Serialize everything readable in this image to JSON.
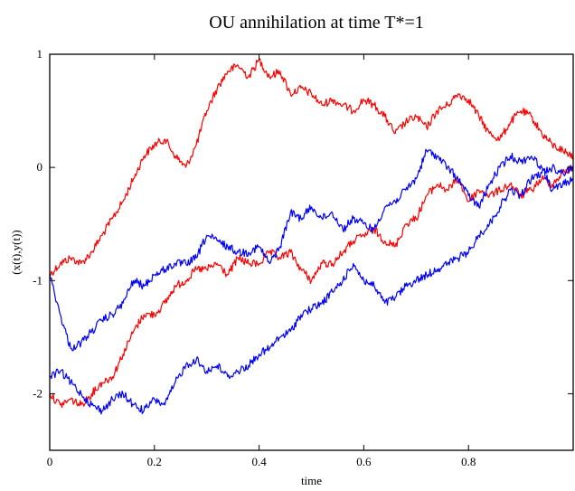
{
  "chart_data": {
    "type": "line",
    "title": "OU annihilation at time T*=1",
    "xlabel": "time",
    "ylabel": "(x(t),y(t))",
    "xlim": [
      0,
      1
    ],
    "ylim": [
      -2.5,
      1
    ],
    "x_ticks": [
      "0",
      "0.2",
      "0.4",
      "0.6",
      "0.8"
    ],
    "x_tick_values": [
      0,
      0.2,
      0.4,
      0.6,
      0.8
    ],
    "y_ticks": [
      "1",
      "0",
      "-1",
      "-2"
    ],
    "y_tick_values": [
      1,
      0,
      -1,
      -2
    ],
    "grid": false,
    "legend": "none",
    "series": [
      {
        "color": "#ff0000",
        "x": [
          0,
          0.02,
          0.04,
          0.06,
          0.08,
          0.1,
          0.12,
          0.14,
          0.16,
          0.18,
          0.2,
          0.22,
          0.24,
          0.26,
          0.28,
          0.3,
          0.32,
          0.34,
          0.36,
          0.38,
          0.4,
          0.42,
          0.44,
          0.46,
          0.48,
          0.5,
          0.52,
          0.54,
          0.56,
          0.58,
          0.6,
          0.62,
          0.64,
          0.66,
          0.68,
          0.7,
          0.72,
          0.74,
          0.76,
          0.78,
          0.8,
          0.82,
          0.84,
          0.86,
          0.88,
          0.9,
          0.92,
          0.94,
          0.96,
          0.98,
          1.0
        ],
        "y": [
          -0.95,
          -0.85,
          -0.8,
          -0.85,
          -0.75,
          -0.6,
          -0.45,
          -0.3,
          -0.1,
          0.1,
          0.2,
          0.25,
          0.1,
          0.0,
          0.2,
          0.5,
          0.7,
          0.85,
          0.9,
          0.8,
          0.95,
          0.8,
          0.85,
          0.65,
          0.7,
          0.65,
          0.55,
          0.6,
          0.55,
          0.5,
          0.6,
          0.55,
          0.45,
          0.3,
          0.4,
          0.45,
          0.35,
          0.5,
          0.55,
          0.65,
          0.6,
          0.45,
          0.3,
          0.25,
          0.4,
          0.5,
          0.45,
          0.3,
          0.2,
          0.15,
          0.1
        ]
      },
      {
        "color": "#ff0000",
        "x": [
          0,
          0.02,
          0.04,
          0.06,
          0.08,
          0.1,
          0.12,
          0.14,
          0.16,
          0.18,
          0.2,
          0.22,
          0.24,
          0.26,
          0.28,
          0.3,
          0.32,
          0.34,
          0.36,
          0.38,
          0.4,
          0.42,
          0.44,
          0.46,
          0.48,
          0.5,
          0.52,
          0.54,
          0.56,
          0.58,
          0.6,
          0.62,
          0.64,
          0.66,
          0.68,
          0.7,
          0.72,
          0.74,
          0.76,
          0.78,
          0.8,
          0.82,
          0.84,
          0.86,
          0.88,
          0.9,
          0.92,
          0.94,
          0.96,
          0.98,
          1.0
        ],
        "y": [
          -2.0,
          -2.1,
          -2.05,
          -2.1,
          -2.0,
          -1.9,
          -1.85,
          -1.65,
          -1.45,
          -1.3,
          -1.3,
          -1.2,
          -1.05,
          -1.0,
          -0.9,
          -0.9,
          -0.85,
          -0.95,
          -0.8,
          -0.85,
          -0.85,
          -0.75,
          -0.8,
          -0.75,
          -0.9,
          -1.0,
          -0.85,
          -0.85,
          -0.75,
          -0.65,
          -0.6,
          -0.55,
          -0.65,
          -0.7,
          -0.5,
          -0.45,
          -0.25,
          -0.15,
          -0.2,
          -0.1,
          -0.3,
          -0.2,
          -0.25,
          -0.2,
          -0.15,
          -0.25,
          -0.2,
          -0.1,
          -0.15,
          -0.05,
          0.0
        ]
      },
      {
        "color": "#0000ff",
        "x": [
          0,
          0.02,
          0.04,
          0.06,
          0.08,
          0.1,
          0.12,
          0.14,
          0.16,
          0.18,
          0.2,
          0.22,
          0.24,
          0.26,
          0.28,
          0.3,
          0.32,
          0.34,
          0.36,
          0.38,
          0.4,
          0.42,
          0.44,
          0.46,
          0.48,
          0.5,
          0.52,
          0.54,
          0.56,
          0.58,
          0.6,
          0.62,
          0.64,
          0.66,
          0.68,
          0.7,
          0.72,
          0.74,
          0.76,
          0.78,
          0.8,
          0.82,
          0.84,
          0.86,
          0.88,
          0.9,
          0.92,
          0.94,
          0.96,
          0.98,
          1.0
        ],
        "y": [
          -0.95,
          -1.3,
          -1.6,
          -1.55,
          -1.45,
          -1.35,
          -1.3,
          -1.2,
          -1.0,
          -1.05,
          -0.95,
          -0.9,
          -0.85,
          -0.85,
          -0.8,
          -0.6,
          -0.65,
          -0.7,
          -0.75,
          -0.75,
          -0.7,
          -0.85,
          -0.7,
          -0.4,
          -0.45,
          -0.35,
          -0.45,
          -0.4,
          -0.55,
          -0.45,
          -0.5,
          -0.55,
          -0.35,
          -0.3,
          -0.2,
          -0.1,
          0.15,
          0.1,
          0.0,
          -0.1,
          -0.25,
          -0.35,
          -0.15,
          0.0,
          0.1,
          0.05,
          0.1,
          0.0,
          -0.2,
          -0.15,
          -0.1
        ]
      },
      {
        "color": "#0000ff",
        "x": [
          0,
          0.02,
          0.04,
          0.06,
          0.08,
          0.1,
          0.12,
          0.14,
          0.16,
          0.18,
          0.2,
          0.22,
          0.24,
          0.26,
          0.28,
          0.3,
          0.32,
          0.34,
          0.36,
          0.38,
          0.4,
          0.42,
          0.44,
          0.46,
          0.48,
          0.5,
          0.52,
          0.54,
          0.56,
          0.58,
          0.6,
          0.62,
          0.64,
          0.66,
          0.68,
          0.7,
          0.72,
          0.74,
          0.76,
          0.78,
          0.8,
          0.82,
          0.84,
          0.86,
          0.88,
          0.9,
          0.92,
          0.94,
          0.96,
          0.98,
          1.0
        ],
        "y": [
          -1.85,
          -1.8,
          -1.9,
          -2.0,
          -2.1,
          -2.15,
          -2.05,
          -2.0,
          -2.1,
          -2.15,
          -2.05,
          -2.1,
          -1.9,
          -1.75,
          -1.7,
          -1.8,
          -1.75,
          -1.85,
          -1.8,
          -1.75,
          -1.65,
          -1.6,
          -1.5,
          -1.45,
          -1.3,
          -1.25,
          -1.2,
          -1.1,
          -1.0,
          -0.85,
          -1.0,
          -1.05,
          -1.2,
          -1.15,
          -1.05,
          -1.0,
          -0.95,
          -0.9,
          -0.85,
          -0.8,
          -0.75,
          -0.6,
          -0.5,
          -0.35,
          -0.2,
          -0.25,
          -0.1,
          -0.05,
          0.0,
          -0.05,
          0.0
        ]
      }
    ]
  }
}
